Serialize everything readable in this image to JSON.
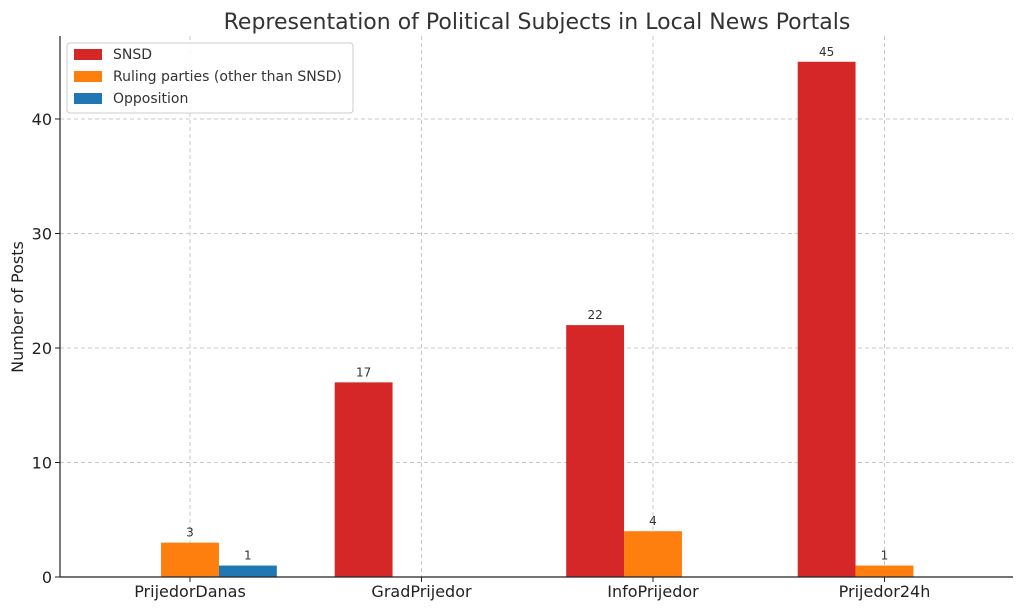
{
  "chart_data": {
    "type": "bar",
    "title": "Representation of Political Subjects in Local News Portals",
    "xlabel": "",
    "ylabel": "Number of Posts",
    "categories": [
      "PrijedorDanas",
      "GradPrijedor",
      "InfoPrijedor",
      "Prijedor24h"
    ],
    "series": [
      {
        "name": "SNSD",
        "color": "#d62728",
        "values": [
          0,
          17,
          22,
          45
        ]
      },
      {
        "name": "Ruling parties (other than SNSD)",
        "color": "#ff7f0e",
        "values": [
          3,
          0,
          4,
          1
        ]
      },
      {
        "name": "Opposition",
        "color": "#1f77b4",
        "values": [
          1,
          0,
          0,
          0
        ]
      }
    ],
    "ylim": [
      0,
      47.25
    ],
    "yticks": [
      0,
      10,
      20,
      30,
      40
    ],
    "grid": true,
    "legend_position": "top-left"
  }
}
